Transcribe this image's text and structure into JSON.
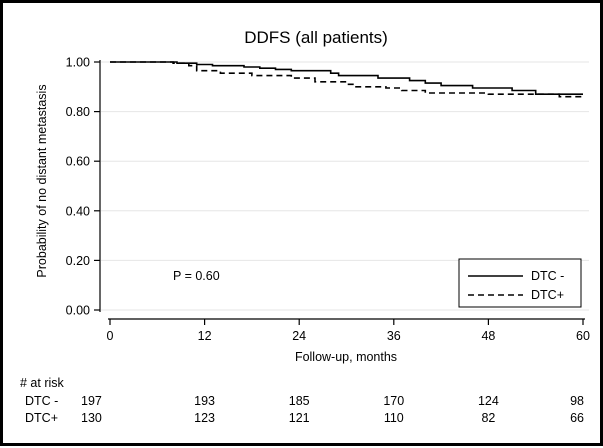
{
  "chart_data": {
    "type": "line",
    "title": "DDFS (all patients)",
    "xlabel": "Follow-up, months",
    "ylabel": "Probability of no distant metastasis",
    "xlim": [
      0,
      60
    ],
    "ylim": [
      0,
      1
    ],
    "x_ticks": [
      "0",
      "12",
      "24",
      "36",
      "48",
      "60"
    ],
    "y_ticks": [
      "0.00",
      "0.20",
      "0.40",
      "0.60",
      "0.80",
      "1.00"
    ],
    "grid": true,
    "legend_position": "bottom-right",
    "annotation": "P = 0.60",
    "series": [
      {
        "name": "DTC -",
        "style": "solid",
        "points": [
          [
            0,
            1.0
          ],
          [
            8.5,
            1.0
          ],
          [
            8.5,
            0.995
          ],
          [
            11,
            0.995
          ],
          [
            11,
            0.99
          ],
          [
            13,
            0.99
          ],
          [
            13,
            0.985
          ],
          [
            17,
            0.985
          ],
          [
            17,
            0.98
          ],
          [
            19,
            0.98
          ],
          [
            19,
            0.975
          ],
          [
            21,
            0.975
          ],
          [
            21,
            0.97
          ],
          [
            23,
            0.97
          ],
          [
            23,
            0.965
          ],
          [
            28,
            0.965
          ],
          [
            28,
            0.955
          ],
          [
            29,
            0.955
          ],
          [
            29,
            0.945
          ],
          [
            34,
            0.945
          ],
          [
            34,
            0.935
          ],
          [
            38,
            0.935
          ],
          [
            38,
            0.925
          ],
          [
            40,
            0.925
          ],
          [
            40,
            0.915
          ],
          [
            42,
            0.915
          ],
          [
            42,
            0.905
          ],
          [
            46,
            0.905
          ],
          [
            46,
            0.895
          ],
          [
            51,
            0.895
          ],
          [
            51,
            0.885
          ],
          [
            54,
            0.885
          ],
          [
            54,
            0.87
          ],
          [
            60,
            0.87
          ]
        ]
      },
      {
        "name": "DTC+",
        "style": "dashed",
        "points": [
          [
            0,
            1.0
          ],
          [
            8,
            1.0
          ],
          [
            8,
            0.995
          ],
          [
            10,
            0.995
          ],
          [
            10,
            0.985
          ],
          [
            11,
            0.985
          ],
          [
            11,
            0.965
          ],
          [
            14,
            0.965
          ],
          [
            14,
            0.955
          ],
          [
            18,
            0.955
          ],
          [
            18,
            0.945
          ],
          [
            23,
            0.945
          ],
          [
            23,
            0.935
          ],
          [
            26,
            0.935
          ],
          [
            26,
            0.92
          ],
          [
            30,
            0.92
          ],
          [
            30,
            0.91
          ],
          [
            31,
            0.91
          ],
          [
            31,
            0.9
          ],
          [
            35,
            0.9
          ],
          [
            35,
            0.895
          ],
          [
            37,
            0.895
          ],
          [
            37,
            0.885
          ],
          [
            40,
            0.885
          ],
          [
            40,
            0.875
          ],
          [
            48,
            0.875
          ],
          [
            48,
            0.87
          ],
          [
            57,
            0.87
          ],
          [
            57,
            0.86
          ],
          [
            60,
            0.86
          ]
        ]
      }
    ],
    "risk_table": {
      "header": "# at risk",
      "times": [
        0,
        12,
        24,
        36,
        48,
        60
      ],
      "rows": [
        {
          "label": "DTC -",
          "values": [
            "197",
            "193",
            "185",
            "170",
            "124",
            "98"
          ]
        },
        {
          "label": "DTC+",
          "values": [
            "130",
            "123",
            "121",
            "110",
            "82",
            "66"
          ]
        }
      ]
    }
  }
}
